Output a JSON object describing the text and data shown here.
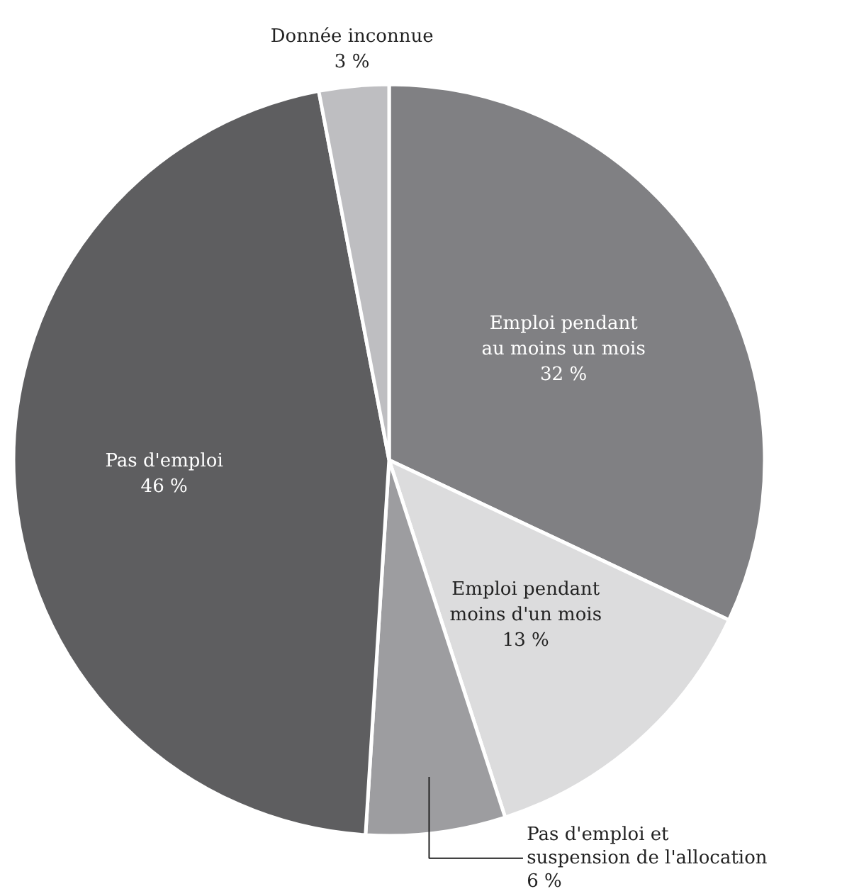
{
  "chart_data": {
    "type": "pie",
    "categories": [
      "Emploi pendant\nau moins un mois",
      "Emploi pendant\nmoins d'un mois",
      "Pas d'emploi et\nsuspension de l'allocation",
      "Pas d'emploi",
      "Donnée inconnue"
    ],
    "values": [
      32,
      13,
      6,
      46,
      3
    ],
    "value_labels": [
      "32 %",
      "13 %",
      "6 %",
      "46 %",
      "3 %"
    ],
    "colors": [
      "#808083",
      "#dcdcdd",
      "#9d9da0",
      "#5e5e60",
      "#bebec1"
    ]
  }
}
